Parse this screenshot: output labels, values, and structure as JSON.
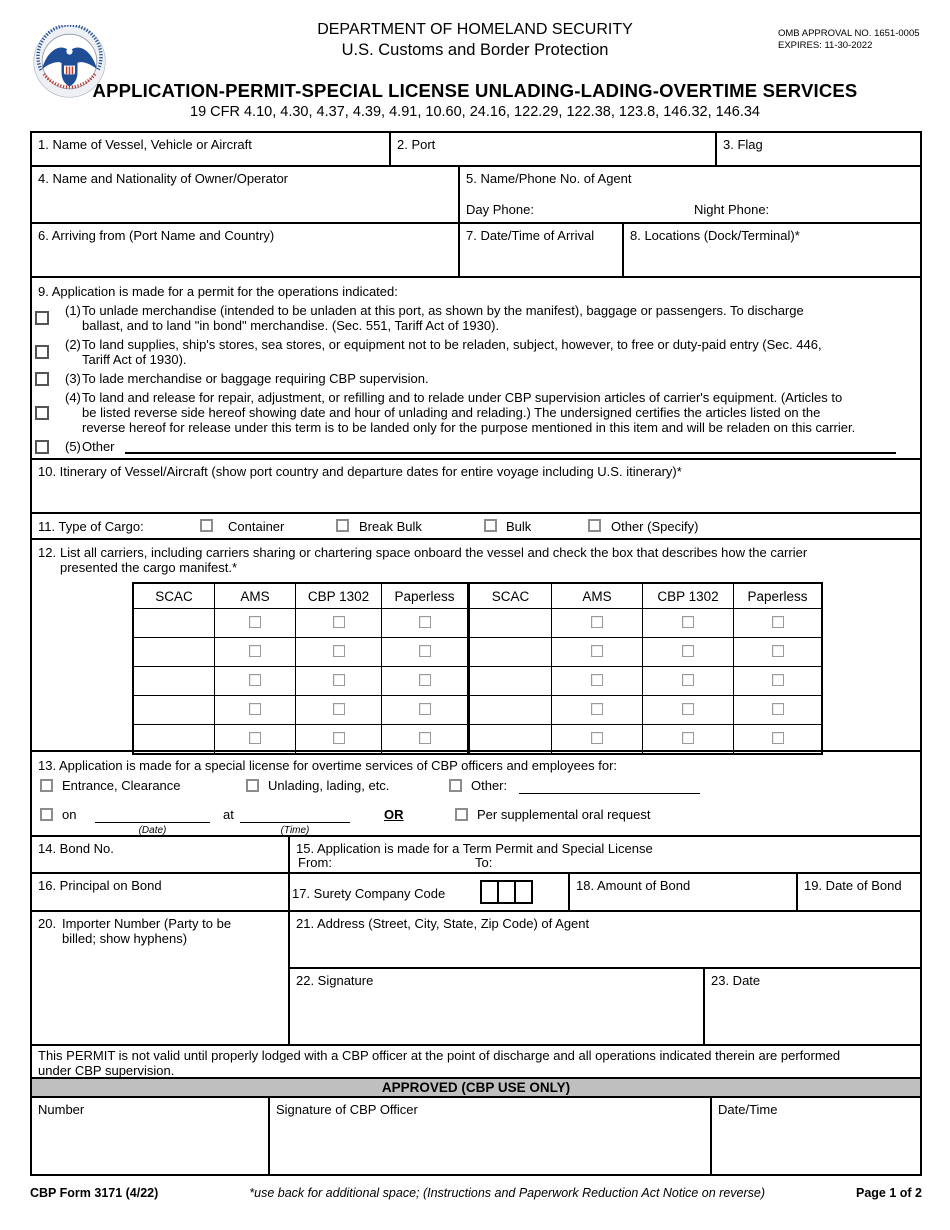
{
  "colors": {
    "seal_navy": "#1f4e96",
    "seal_red": "#c1392e",
    "approved_bar_bg": "#bfbfbf",
    "line_color": "#000000"
  },
  "header": {
    "dept1": "DEPARTMENT OF HOMELAND SECURITY",
    "dept2": "U.S. Customs and Border Protection",
    "omb1": "OMB APPROVAL NO. 1651-0005",
    "omb2": "EXPIRES: 11-30-2022",
    "title": "APPLICATION-PERMIT-SPECIAL LICENSE UNLADING-LADING-OVERTIME SERVICES",
    "cfr": "19 CFR 4.10, 4.30, 4.37, 4.39, 4.91, 10.60, 24.16, 122.29, 122.38, 123.8, 146.32, 146.34"
  },
  "fields": {
    "f1": "1. Name of Vessel, Vehicle or Aircraft",
    "f2": "2. Port",
    "f3": "3. Flag",
    "f4": "4. Name and Nationality of Owner/Operator",
    "f5": "5. Name/Phone No. of Agent",
    "f5_day": "Day Phone:",
    "f5_night": "Night Phone:",
    "f6": "6. Arriving from (Port Name and Country)",
    "f7": "7. Date/Time of Arrival",
    "f8": "8. Locations (Dock/Terminal)*"
  },
  "section9": {
    "label": "9. Application is made for a permit for the operations indicated:",
    "items": [
      {
        "num": "(1)",
        "text": "To unlade merchandise (intended to be unladen at this port, as shown by the manifest), baggage or passengers. To discharge\nballast, and to land \"in bond\" merchandise. (Sec. 551, Tariff Act of 1930)."
      },
      {
        "num": "(2)",
        "text": "To land supplies, ship's stores, sea stores, or equipment not to be reladen, subject, however, to free or duty-paid entry (Sec. 446,\nTariff Act of 1930)."
      },
      {
        "num": "(3)",
        "text": "To lade merchandise or baggage requiring CBP supervision."
      },
      {
        "num": "(4)",
        "text": "To land and release for repair, adjustment, or refilling and to relade under CBP supervision articles of carrier's equipment. (Articles to\nbe listed reverse side hereof showing date and hour of unlading and relading.) The undersigned certifies the articles listed on the\nreverse hereof for release under this term is to be landed only for the purpose mentioned in this item and will be reladen on this carrier."
      },
      {
        "num": "(5)",
        "text": "Other"
      }
    ]
  },
  "section10": {
    "label": "10. Itinerary of Vessel/Aircraft (show port country and departure dates for entire voyage including U.S. itinerary)*"
  },
  "section11": {
    "label": "11. Type of Cargo:",
    "options": [
      "Container",
      "Break Bulk",
      "Bulk",
      "Other (Specify)"
    ]
  },
  "section12": {
    "num": "12.",
    "label": "List all carriers, including carriers sharing or chartering space onboard the vessel and check the box that describes how the carrier\npresented the cargo manifest.*",
    "headers": [
      "SCAC",
      "AMS",
      "CBP 1302",
      "Paperless",
      "SCAC",
      "AMS",
      "CBP 1302",
      "Paperless"
    ],
    "rows": 5
  },
  "section13": {
    "label": "13. Application is made for a special license for overtime services of CBP officers and employees for:",
    "opt_entrance": "Entrance, Clearance",
    "opt_unlading": "Unlading, lading, etc.",
    "opt_other": "Other:",
    "on": "on",
    "at": "at",
    "or": "OR",
    "date_caption": "(Date)",
    "time_caption": "(Time)",
    "oral": "Per supplemental oral request"
  },
  "bond": {
    "f14": "14. Bond No.",
    "f15": "15. Application is made for a Term Permit and Special License",
    "from": "From:",
    "to": "To:",
    "f16": "16. Principal on Bond",
    "f17": "17. Surety Company Code",
    "f18": "18. Amount of Bond",
    "f19": "19. Date of Bond"
  },
  "agent": {
    "f20_num": "20.",
    "f20": "Importer Number (Party to be\nbilled; show hyphens)",
    "f21": "21. Address (Street, City, State, Zip Code) of Agent",
    "f22": "22. Signature",
    "f23": "23. Date"
  },
  "permit_note": "This PERMIT is not valid until properly lodged with a CBP officer at the point of discharge and all operations indicated therein are performed\nunder CBP supervision.",
  "approved": {
    "header": "APPROVED (CBP USE ONLY)",
    "number": "Number",
    "signature": "Signature of CBP Officer",
    "datetime": "Date/Time"
  },
  "footer": {
    "form_id": "CBP Form 3171 (4/22)",
    "note": "*use back for additional space; (Instructions and Paperwork Reduction Act Notice on reverse)",
    "page": "Page 1 of 2"
  }
}
